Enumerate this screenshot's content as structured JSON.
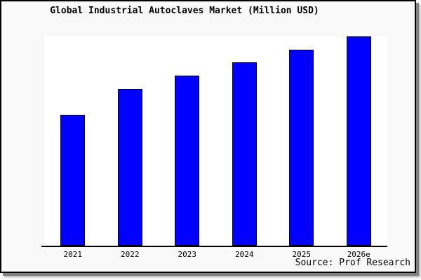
{
  "source_caption": "Source: Prof Research",
  "colors": {
    "bar_fill": "#0000ff",
    "bar_border": "#000000",
    "figure_background": "#f9f9f9",
    "plot_background": "#ffffff",
    "axis": "#000000",
    "frame_border": "#000000",
    "shadow": "#8a8a8a",
    "text": "#000000"
  },
  "chart_data": {
    "type": "bar",
    "title": "Global Industrial Autoclaves Market (Million USD)",
    "categories": [
      "2021",
      "2022",
      "2023",
      "2024",
      "2025",
      "2026e"
    ],
    "values_pct_of_max": [
      62.7,
      75.0,
      81.3,
      87.7,
      93.7,
      100
    ],
    "value_axis_note": "no y-axis ticks or value labels shown; bar heights are relative, 2026e = tallest",
    "xlabel": "",
    "ylabel": "",
    "grid": false,
    "legend": "none",
    "bar_color": "#0000ff",
    "source": "Source: Prof Research"
  }
}
